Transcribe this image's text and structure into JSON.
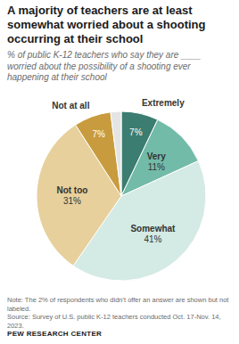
{
  "chart_data": {
    "type": "pie",
    "title": "A majority of teachers are at least somewhat worried about a shooting occurring at their school",
    "subtitle": "% of public K-12 teachers who say they are ____ worried about the possibility of a shooting ever happening at their school",
    "categories": [
      "Extremely",
      "Very",
      "Somewhat",
      "Not too",
      "Not at all",
      null
    ],
    "values": [
      7,
      11,
      41,
      31,
      7,
      2
    ],
    "value_labels": [
      "7%",
      "11%",
      "41%",
      "31%",
      "7%",
      null
    ],
    "colors": [
      "#3b7d70",
      "#72bba8",
      "#d4eae4",
      "#e7d09c",
      "#c89c3e",
      "#e4e4e4"
    ],
    "data_labels": true,
    "note": "Note: The 2% of respondents who didn't offer an answer are shown but not labeled.",
    "source": "Source: Survey of U.S. public K-12 teachers conducted Oct. 17-Nov. 14, 2023.",
    "credit": "PEW RESEARCH CENTER"
  }
}
